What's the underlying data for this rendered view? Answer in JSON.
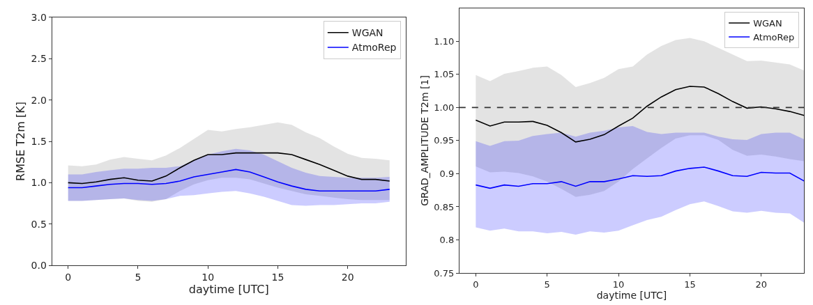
{
  "chart_data": [
    {
      "type": "line",
      "xlabel": "daytime [UTC]",
      "ylabel": "RMSE T2m [K]",
      "xlim": [
        -1.15,
        24.15
      ],
      "xticks": [
        0,
        5,
        10,
        15,
        20
      ],
      "ylim": [
        0,
        3.0
      ],
      "yticks": [
        {
          "value": 0,
          "label": "0.0"
        },
        {
          "value": 0.5,
          "label": "0.5"
        },
        {
          "value": 1.0,
          "label": "1.0"
        },
        {
          "value": 1.5,
          "label": "1.5"
        },
        {
          "value": 2.0,
          "label": "2.0"
        },
        {
          "value": 2.5,
          "label": "2.5"
        },
        {
          "value": 3.0,
          "label": "3.0"
        }
      ],
      "legend": "top right",
      "x": [
        0,
        1,
        2,
        3,
        4,
        5,
        6,
        7,
        8,
        9,
        10,
        11,
        12,
        13,
        14,
        15,
        16,
        17,
        18,
        19,
        20,
        21,
        22,
        23
      ],
      "series": [
        {
          "name": "WGAN",
          "color": "#000000",
          "values": [
            1.0,
            0.99,
            1.01,
            1.04,
            1.06,
            1.03,
            1.02,
            1.08,
            1.18,
            1.27,
            1.34,
            1.34,
            1.36,
            1.36,
            1.36,
            1.36,
            1.34,
            1.28,
            1.22,
            1.15,
            1.08,
            1.04,
            1.04,
            1.02
          ],
          "lower": [
            0.78,
            0.78,
            0.79,
            0.8,
            0.81,
            0.78,
            0.77,
            0.8,
            0.9,
            0.98,
            1.03,
            1.06,
            1.06,
            1.04,
            0.99,
            0.94,
            0.9,
            0.86,
            0.84,
            0.82,
            0.8,
            0.79,
            0.79,
            0.79
          ],
          "upper": [
            1.21,
            1.2,
            1.22,
            1.28,
            1.31,
            1.29,
            1.27,
            1.33,
            1.42,
            1.53,
            1.64,
            1.62,
            1.65,
            1.67,
            1.7,
            1.73,
            1.7,
            1.61,
            1.54,
            1.44,
            1.35,
            1.3,
            1.29,
            1.27
          ]
        },
        {
          "name": "AtmoRep",
          "color": "#0000ff",
          "values": [
            0.94,
            0.94,
            0.96,
            0.98,
            0.99,
            0.99,
            0.98,
            0.99,
            1.02,
            1.07,
            1.1,
            1.13,
            1.16,
            1.13,
            1.07,
            1.01,
            0.96,
            0.92,
            0.9,
            0.9,
            0.9,
            0.9,
            0.9,
            0.92
          ],
          "lower": [
            0.78,
            0.78,
            0.79,
            0.8,
            0.81,
            0.79,
            0.78,
            0.8,
            0.84,
            0.85,
            0.87,
            0.89,
            0.9,
            0.87,
            0.83,
            0.78,
            0.73,
            0.72,
            0.73,
            0.73,
            0.74,
            0.75,
            0.75,
            0.77
          ],
          "upper": [
            1.1,
            1.1,
            1.13,
            1.15,
            1.17,
            1.17,
            1.18,
            1.18,
            1.2,
            1.27,
            1.34,
            1.38,
            1.41,
            1.39,
            1.34,
            1.26,
            1.18,
            1.12,
            1.08,
            1.07,
            1.06,
            1.06,
            1.06,
            1.07
          ]
        }
      ]
    },
    {
      "type": "line",
      "xlabel": "daytime [UTC]",
      "ylabel": "GRAD_AMPLITUDE T2m [1]",
      "xlim": [
        -1.15,
        23
      ],
      "xticks": [
        0,
        5,
        10,
        15,
        20
      ],
      "ylim": [
        0.75,
        1.15
      ],
      "yticks": [
        0.75,
        0.8,
        0.85,
        0.9,
        0.95,
        {
          "value": 1.0,
          "label": "1.00"
        },
        1.05,
        {
          "value": 1.1,
          "label": "1.10"
        }
      ],
      "legend": "top right",
      "ref_lines": [
        {
          "axis": "y",
          "value": 1.0,
          "color": "#333333",
          "line_style": "dashed"
        }
      ],
      "x": [
        0,
        1,
        2,
        3,
        4,
        5,
        6,
        7,
        8,
        9,
        10,
        11,
        12,
        13,
        14,
        15,
        16,
        17,
        18,
        19,
        20,
        21,
        22,
        23
      ],
      "series": [
        {
          "name": "WGAN",
          "color": "#000000",
          "values": [
            0.981,
            0.972,
            0.978,
            0.978,
            0.979,
            0.973,
            0.962,
            0.948,
            0.952,
            0.959,
            0.972,
            0.984,
            1.002,
            1.016,
            1.027,
            1.032,
            1.031,
            1.021,
            1.009,
            0.999,
            1.001,
            0.998,
            0.994,
            0.988
          ],
          "lower": [
            0.911,
            0.902,
            0.903,
            0.901,
            0.896,
            0.888,
            0.877,
            0.865,
            0.868,
            0.874,
            0.888,
            0.907,
            0.923,
            0.939,
            0.953,
            0.958,
            0.958,
            0.951,
            0.936,
            0.927,
            0.929,
            0.926,
            0.922,
            0.919
          ],
          "upper": [
            1.049,
            1.04,
            1.051,
            1.055,
            1.06,
            1.062,
            1.049,
            1.031,
            1.037,
            1.045,
            1.058,
            1.062,
            1.08,
            1.093,
            1.102,
            1.105,
            1.1,
            1.09,
            1.08,
            1.07,
            1.071,
            1.068,
            1.065,
            1.056
          ]
        },
        {
          "name": "AtmoRep",
          "color": "#0000ff",
          "values": [
            0.883,
            0.878,
            0.883,
            0.881,
            0.885,
            0.885,
            0.888,
            0.881,
            0.888,
            0.888,
            0.892,
            0.897,
            0.896,
            0.897,
            0.904,
            0.908,
            0.91,
            0.904,
            0.897,
            0.896,
            0.902,
            0.901,
            0.901,
            0.889
          ],
          "lower": [
            0.819,
            0.814,
            0.817,
            0.813,
            0.813,
            0.81,
            0.812,
            0.808,
            0.813,
            0.811,
            0.814,
            0.822,
            0.83,
            0.835,
            0.845,
            0.854,
            0.858,
            0.851,
            0.843,
            0.841,
            0.844,
            0.841,
            0.84,
            0.826
          ],
          "upper": [
            0.949,
            0.942,
            0.949,
            0.95,
            0.957,
            0.96,
            0.962,
            0.956,
            0.962,
            0.965,
            0.97,
            0.972,
            0.963,
            0.96,
            0.962,
            0.962,
            0.962,
            0.956,
            0.952,
            0.951,
            0.96,
            0.962,
            0.962,
            0.952
          ]
        }
      ]
    }
  ]
}
